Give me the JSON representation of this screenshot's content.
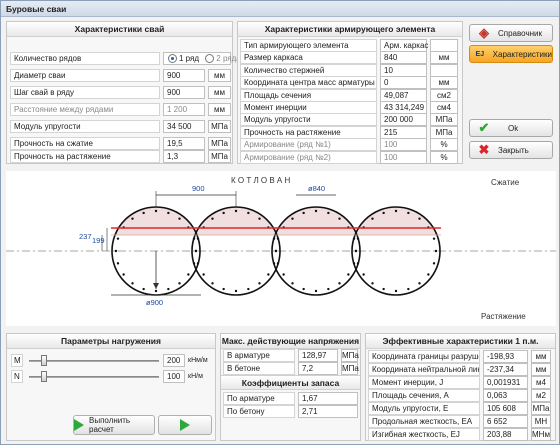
{
  "window": {
    "title": "Буровые сваи"
  },
  "pile": {
    "title": "Характеристики свай",
    "rows_count": {
      "label": "Количество рядов",
      "opt1": "1 ряд",
      "opt2": "2 ряда"
    },
    "diameter": {
      "label": "Диаметр сваи",
      "value": "900",
      "unit": "мм"
    },
    "step": {
      "label": "Шаг свай в ряду",
      "value": "900",
      "unit": "мм"
    },
    "row_distance": {
      "label": "Расстояние между рядами",
      "value": "1 200",
      "unit": "мм"
    },
    "modulus": {
      "label": "Модуль упругости",
      "value": "34 500",
      "unit": "МПа"
    },
    "compression": {
      "label": "Прочность на сжатие",
      "value": "19,5",
      "unit": "МПа"
    },
    "tension": {
      "label": "Прочность на растяжение",
      "value": "1,3",
      "unit": "МПа"
    }
  },
  "rebar": {
    "title": "Характеристики армирующего элемента",
    "rows": [
      {
        "label": "Тип армирующего элемента",
        "value": "Арм. каркас",
        "unit": ""
      },
      {
        "label": "Размер каркаса",
        "value": "840",
        "unit": "мм"
      },
      {
        "label": "Количество стержней",
        "value": "10",
        "unit": ""
      },
      {
        "label": "Координата центра масс арматуры",
        "value": "0",
        "unit": "мм"
      },
      {
        "label": "Площадь сечения",
        "value": "49,087",
        "unit": "см2"
      },
      {
        "label": "Момент инерции",
        "value": "43 314,249",
        "unit": "см4"
      },
      {
        "label": "Модуль упругости",
        "value": "200 000",
        "unit": "МПа"
      },
      {
        "label": "Прочность на растяжение",
        "value": "215",
        "unit": "МПа"
      },
      {
        "label": "Армирование (ряд №1)",
        "value": "100",
        "unit": "%"
      },
      {
        "label": "Армирование (ряд №2)",
        "value": "100",
        "unit": "%"
      }
    ]
  },
  "buttons": {
    "reference": "Справочник",
    "characteristics": "Характеристики",
    "ok": "Ok",
    "close": "Закрыть",
    "ej": "EJ",
    "run": "Выполнить расчет"
  },
  "drawing": {
    "kotlovan": "К О Т Л О В А Н",
    "compression": "Сжатие",
    "tension": "Растяжение",
    "dim_step": "900",
    "dim_frame": "ø840",
    "dim_pile": "ø900",
    "dim_a": "237",
    "dim_b": "199"
  },
  "loads": {
    "title": "Параметры нагружения",
    "m": {
      "label": "M",
      "value": "200",
      "unit": "кНм/м",
      "level": 0.1
    },
    "n": {
      "label": "N",
      "value": "100",
      "unit": "кН/м",
      "level": 0.1
    }
  },
  "stress": {
    "title": "Макс. действующие напряжения",
    "rows": [
      {
        "label": "В арматуре",
        "value": "128,97",
        "unit": "МПа"
      },
      {
        "label": "В бетоне",
        "value": "7,2",
        "unit": "МПа"
      }
    ]
  },
  "safety": {
    "title": "Коэффициенты запаса",
    "rows": [
      {
        "label": "По арматуре",
        "value": "1,67"
      },
      {
        "label": "По бетону",
        "value": "2,71"
      }
    ]
  },
  "effective": {
    "title": "Эффективные характеристики 1 п.м. сечения",
    "rows": [
      {
        "label": "Координата границы разрушения",
        "value": "-198,93",
        "unit": "мм"
      },
      {
        "label": "Координата нейтральной линии",
        "value": "-237,34",
        "unit": "мм"
      },
      {
        "label": "Момент инерции, J",
        "value": "0,001931",
        "unit": "м4"
      },
      {
        "label": "Площадь сечения, A",
        "value": "0,063",
        "unit": "м2"
      },
      {
        "label": "Модуль упругости, E",
        "value": "105 608",
        "unit": "МПа"
      },
      {
        "label": "Продольная жесткость, EA",
        "value": "6 652",
        "unit": "МН"
      },
      {
        "label": "Изгибная жесткость, EJ",
        "value": "203,88",
        "unit": "МНм"
      }
    ]
  },
  "colors": {
    "accent": "#f5a623",
    "check": "#2fa83b",
    "close": "#d8262c",
    "red_line": "#e0262c"
  }
}
